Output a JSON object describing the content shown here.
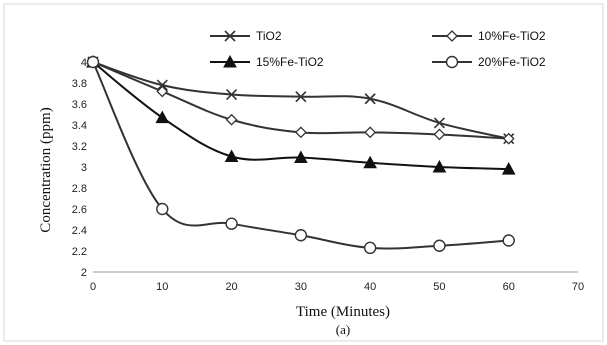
{
  "chart_data": {
    "type": "line",
    "title": "",
    "xlabel": "Time (Minutes)",
    "ylabel": "Concentration (ppm)",
    "sublabel": "(a)",
    "xlim": [
      0,
      70
    ],
    "ylim": [
      2,
      4
    ],
    "xticks": [
      "0",
      "10",
      "20",
      "30",
      "40",
      "50",
      "60",
      "70"
    ],
    "yticks": [
      "2",
      "2.2",
      "2.4",
      "2.6",
      "2.8",
      "3",
      "3.2",
      "3.4",
      "3.6",
      "3.8",
      "4"
    ],
    "grid": false,
    "legend_placement": "top",
    "x": [
      0,
      10,
      20,
      30,
      40,
      50,
      60
    ],
    "series": [
      {
        "name": "TiO2",
        "marker": "cross",
        "color": "#333333",
        "values": [
          4.0,
          3.78,
          3.69,
          3.67,
          3.65,
          3.42,
          3.27
        ]
      },
      {
        "name": "10%Fe-TiO2",
        "marker": "diamond",
        "color": "#333333",
        "values": [
          4.0,
          3.72,
          3.45,
          3.33,
          3.33,
          3.31,
          3.27
        ]
      },
      {
        "name": "15%Fe-TiO2",
        "marker": "triangle",
        "color": "#111111",
        "values": [
          4.0,
          3.47,
          3.1,
          3.09,
          3.04,
          3.0,
          2.98
        ]
      },
      {
        "name": "20%Fe-TiO2",
        "marker": "circle",
        "color": "#333333",
        "values": [
          4.0,
          2.6,
          2.46,
          2.35,
          2.23,
          2.25,
          2.3
        ]
      }
    ]
  }
}
